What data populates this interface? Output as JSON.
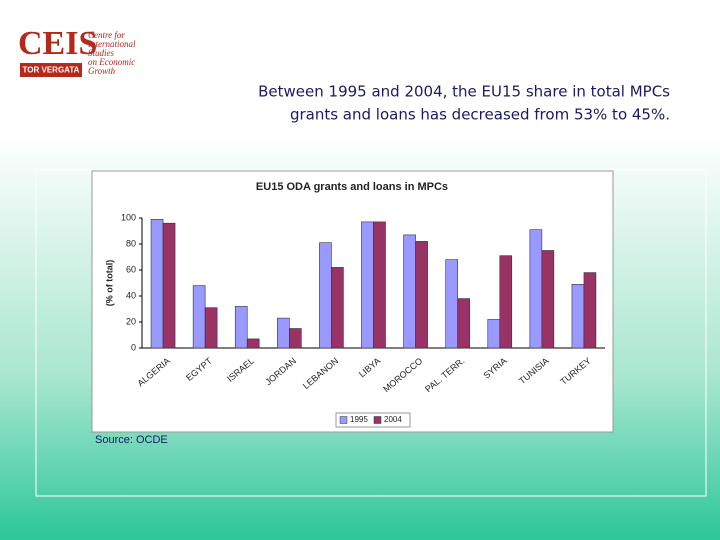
{
  "header": {
    "logo_mark": "CEIS",
    "logo_band": "TOR VERGATA",
    "logo_text": [
      "Centre for",
      "International",
      "Studies",
      "on Economic",
      "Growth"
    ],
    "heading": [
      "Between 1995 and 2004, the EU15 share in total MPCs",
      "grants and loans has decreased from 53% to 45%."
    ]
  },
  "source": "Source: OCDE",
  "chart_data": {
    "type": "bar",
    "title": "EU15 ODA grants and loans in MPCs",
    "y_label": "(% of total)",
    "categories": [
      "ALGERIA",
      "EGYPT",
      "ISRAEL",
      "JORDAN",
      "LEBANON",
      "LIBYA",
      "MOROCCO",
      "PAL. TERR.",
      "SYRIA",
      "TUNISIA",
      "TURKEY"
    ],
    "series": [
      {
        "name": "1995",
        "color": "#9999ff",
        "values": [
          99,
          48,
          32,
          23,
          81,
          97,
          87,
          68,
          22,
          91,
          49
        ]
      },
      {
        "name": "2004",
        "color": "#993366",
        "values": [
          96,
          31,
          7,
          15,
          62,
          97,
          82,
          38,
          71,
          75,
          58
        ]
      }
    ],
    "ylim": [
      0,
      100
    ],
    "yticks": [
      0,
      20,
      40,
      60,
      80,
      100
    ],
    "grid": false,
    "legend": "bottom"
  }
}
